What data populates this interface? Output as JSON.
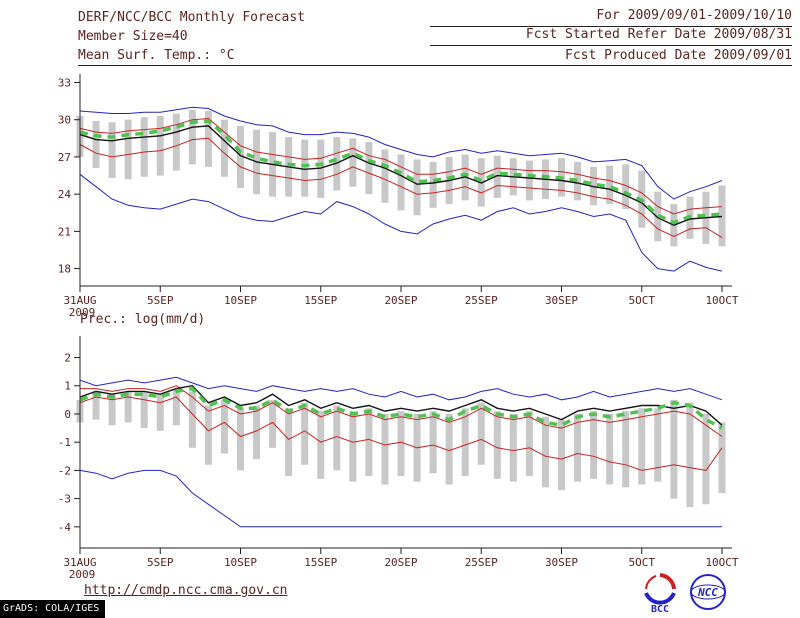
{
  "header": {
    "title": "DERF/NCC/BCC Monthly Forecast",
    "member_size": "Member Size=40",
    "temp_label": "Mean Surf. Temp.: °C",
    "for_range": "For 2009/09/01-2009/10/10",
    "fcst_started": "Fcst Started Refer Date 2009/08/31",
    "fcst_produced": "Fcst Produced Date 2009/09/01"
  },
  "footer": {
    "url": "http://cmdp.ncc.cma.gov.cn",
    "grads_credit": "GrADS: COLA/IGES",
    "logo_bcc": "BCC",
    "logo_ncc": "NCC"
  },
  "colors": {
    "blue": "#2323c8",
    "red": "#c82323",
    "black": "#141414",
    "green": "#4fc24f",
    "gray": "#c8c8c8",
    "text": "#5a2420",
    "axis": "#222222"
  },
  "chart_data": [
    {
      "type": "line",
      "title": "Mean Surf. Temp.: °C",
      "ylabel": "°C",
      "ylim": [
        16.6,
        33.2
      ],
      "yticks": [
        18,
        21,
        24,
        27,
        30,
        33
      ],
      "x_max": 40,
      "x_ticks": [
        {
          "day": 0,
          "label": "31AUG",
          "sub": "2009"
        },
        {
          "day": 5,
          "label": "5SEP"
        },
        {
          "day": 10,
          "label": "10SEP"
        },
        {
          "day": 15,
          "label": "15SEP"
        },
        {
          "day": 20,
          "label": "20SEP"
        },
        {
          "day": 25,
          "label": "25SEP"
        },
        {
          "day": 30,
          "label": "30SEP"
        },
        {
          "day": 35,
          "label": "5OCT"
        },
        {
          "day": 40,
          "label": "10OCT"
        }
      ],
      "bars": {
        "name": "ensemble-spread",
        "color": "gray",
        "high": [
          30.3,
          29.9,
          29.8,
          30.0,
          30.2,
          30.3,
          30.5,
          30.8,
          30.7,
          30.0,
          29.5,
          29.2,
          29.0,
          28.6,
          28.4,
          28.4,
          28.6,
          28.5,
          28.2,
          27.6,
          27.2,
          26.8,
          26.6,
          27.0,
          27.2,
          26.9,
          27.1,
          26.9,
          26.7,
          26.8,
          26.9,
          26.6,
          26.2,
          26.3,
          26.4,
          25.9,
          24.2,
          23.2,
          23.8,
          24.2,
          24.7
        ],
        "low": [
          27.0,
          26.1,
          25.3,
          25.2,
          25.4,
          25.5,
          25.9,
          26.4,
          26.2,
          25.4,
          24.5,
          24.0,
          23.8,
          23.8,
          23.8,
          23.7,
          24.3,
          24.6,
          24.0,
          23.3,
          22.7,
          22.3,
          22.9,
          23.2,
          23.5,
          23.0,
          23.7,
          23.9,
          23.5,
          23.6,
          23.8,
          23.5,
          23.1,
          23.2,
          22.8,
          21.3,
          20.2,
          19.8,
          20.4,
          20.0,
          19.8
        ]
      },
      "series": [
        {
          "name": "maximum",
          "color": "blue",
          "width": 1,
          "values": [
            30.7,
            30.6,
            30.5,
            30.5,
            30.6,
            30.6,
            30.8,
            31.0,
            30.9,
            30.3,
            29.9,
            29.6,
            29.5,
            29.0,
            28.8,
            28.8,
            29.0,
            28.9,
            28.6,
            28.0,
            27.6,
            27.2,
            27.0,
            27.4,
            27.6,
            27.3,
            27.5,
            27.3,
            27.1,
            27.2,
            27.3,
            27.0,
            26.6,
            26.7,
            26.8,
            26.3,
            24.6,
            23.6,
            24.2,
            24.6,
            25.1
          ]
        },
        {
          "name": "upper-quartile",
          "color": "red",
          "width": 1,
          "values": [
            29.3,
            29.0,
            28.9,
            29.1,
            29.2,
            29.3,
            29.6,
            30.0,
            30.1,
            29.0,
            27.9,
            27.4,
            27.2,
            27.0,
            26.8,
            26.9,
            27.3,
            27.7,
            27.1,
            26.8,
            26.2,
            25.6,
            25.6,
            25.8,
            26.1,
            25.6,
            26.1,
            26.0,
            25.9,
            25.9,
            25.8,
            25.6,
            25.3,
            25.1,
            24.7,
            24.1,
            23.0,
            22.4,
            22.8,
            22.9,
            23.0
          ]
        },
        {
          "name": "lower-quartile",
          "color": "red",
          "width": 1,
          "values": [
            28.0,
            27.3,
            27.0,
            27.2,
            27.4,
            27.5,
            27.9,
            28.4,
            28.5,
            27.3,
            26.2,
            25.7,
            25.5,
            25.3,
            25.1,
            25.2,
            25.6,
            26.2,
            25.7,
            25.2,
            24.6,
            24.0,
            24.1,
            24.3,
            24.6,
            24.1,
            24.7,
            24.6,
            24.5,
            24.4,
            24.3,
            24.1,
            23.8,
            23.6,
            23.1,
            22.4,
            21.2,
            20.6,
            21.2,
            21.3,
            20.5
          ]
        },
        {
          "name": "minimum",
          "color": "blue",
          "width": 1,
          "values": [
            25.6,
            24.6,
            23.6,
            23.1,
            22.9,
            22.8,
            23.2,
            23.6,
            23.4,
            22.8,
            22.2,
            21.9,
            21.8,
            22.2,
            22.6,
            22.4,
            23.4,
            23.0,
            22.4,
            21.6,
            21.0,
            20.8,
            21.6,
            22.0,
            22.3,
            21.9,
            22.6,
            22.9,
            22.4,
            22.6,
            22.9,
            22.6,
            22.2,
            22.4,
            21.9,
            19.3,
            18.0,
            17.8,
            18.6,
            18.1,
            17.8
          ]
        },
        {
          "name": "ensemble-mean",
          "color": "black",
          "width": 1.4,
          "values": [
            28.8,
            28.4,
            28.3,
            28.5,
            28.6,
            28.7,
            29.0,
            29.4,
            29.5,
            28.3,
            27.1,
            26.6,
            26.4,
            26.2,
            26.0,
            26.1,
            26.5,
            27.1,
            26.5,
            26.1,
            25.5,
            24.8,
            24.9,
            25.1,
            25.4,
            24.9,
            25.5,
            25.4,
            25.3,
            25.2,
            25.1,
            24.9,
            24.6,
            24.4,
            23.9,
            23.3,
            22.1,
            21.5,
            22.0,
            22.1,
            22.2
          ]
        },
        {
          "name": "median",
          "color": "green",
          "width": 3.5,
          "dash": "8 6",
          "values": [
            29.0,
            28.7,
            28.6,
            28.8,
            28.9,
            29.1,
            29.4,
            29.8,
            29.9,
            28.8,
            27.4,
            26.9,
            26.6,
            26.4,
            26.3,
            26.4,
            26.8,
            27.3,
            26.7,
            26.3,
            25.7,
            25.0,
            25.1,
            25.3,
            25.6,
            25.1,
            25.7,
            25.6,
            25.5,
            25.4,
            25.3,
            25.1,
            24.8,
            24.6,
            24.1,
            23.5,
            22.3,
            21.7,
            22.2,
            22.3,
            22.4
          ]
        }
      ]
    },
    {
      "type": "line",
      "title": "Prec.: log(mm/d)",
      "ylabel": "log(mm/d)",
      "ylim": [
        -4.75,
        2.55
      ],
      "yticks": [
        -4,
        -3,
        -2,
        -1,
        0,
        1,
        2
      ],
      "x_max": 40,
      "x_ticks": [
        {
          "day": 0,
          "label": "31AUG",
          "sub": "2009"
        },
        {
          "day": 5,
          "label": "5SEP"
        },
        {
          "day": 10,
          "label": "10SEP"
        },
        {
          "day": 15,
          "label": "15SEP"
        },
        {
          "day": 20,
          "label": "20SEP"
        },
        {
          "day": 25,
          "label": "25SEP"
        },
        {
          "day": 30,
          "label": "30SEP"
        },
        {
          "day": 35,
          "label": "5OCT"
        },
        {
          "day": 40,
          "label": "10OCT"
        }
      ],
      "bars": {
        "name": "ensemble-spread",
        "color": "gray",
        "high": [
          0.5,
          0.8,
          0.7,
          0.8,
          0.8,
          0.7,
          0.9,
          0.8,
          0.3,
          0.5,
          0.2,
          0.3,
          0.5,
          0.2,
          0.4,
          0.1,
          0.3,
          0.1,
          0.2,
          0.0,
          0.1,
          0.0,
          0.1,
          0.0,
          0.2,
          0.4,
          0.1,
          0.0,
          0.1,
          -0.1,
          -0.2,
          0.0,
          0.1,
          0.0,
          0.1,
          0.2,
          0.2,
          0.5,
          0.4,
          0.0,
          -0.3
        ],
        "low": [
          -0.3,
          -0.2,
          -0.4,
          -0.3,
          -0.5,
          -0.6,
          -0.4,
          -1.2,
          -1.8,
          -1.4,
          -2.0,
          -1.6,
          -1.2,
          -2.2,
          -1.8,
          -2.3,
          -2.0,
          -2.4,
          -2.2,
          -2.5,
          -2.2,
          -2.4,
          -2.1,
          -2.5,
          -2.2,
          -1.8,
          -2.3,
          -2.4,
          -2.2,
          -2.6,
          -2.7,
          -2.4,
          -2.3,
          -2.5,
          -2.6,
          -2.5,
          -2.4,
          -3.0,
          -3.3,
          -3.2,
          -2.8
        ]
      },
      "series": [
        {
          "name": "maximum",
          "color": "blue",
          "width": 1,
          "values": [
            1.2,
            1.0,
            1.1,
            1.2,
            1.1,
            1.2,
            1.3,
            1.1,
            0.9,
            1.0,
            0.9,
            0.8,
            1.0,
            0.9,
            0.8,
            0.9,
            0.8,
            0.9,
            0.7,
            0.6,
            0.8,
            0.6,
            0.7,
            0.5,
            0.6,
            0.8,
            0.9,
            0.7,
            0.6,
            0.7,
            0.5,
            0.6,
            0.8,
            0.6,
            0.7,
            0.8,
            0.9,
            0.8,
            0.9,
            0.7,
            0.5
          ]
        },
        {
          "name": "upper-quartile",
          "color": "red",
          "width": 1,
          "values": [
            0.9,
            0.9,
            0.8,
            0.9,
            0.9,
            0.8,
            1.0,
            0.6,
            0.1,
            0.3,
            0.0,
            0.1,
            0.4,
            0.0,
            0.2,
            -0.1,
            0.1,
            -0.1,
            0.0,
            -0.2,
            -0.1,
            -0.2,
            -0.1,
            -0.3,
            -0.1,
            0.2,
            -0.1,
            -0.2,
            -0.1,
            -0.4,
            -0.5,
            -0.3,
            -0.2,
            -0.3,
            -0.2,
            -0.1,
            0.0,
            0.1,
            0.0,
            -0.4,
            -0.8
          ]
        },
        {
          "name": "lower-quartile",
          "color": "red",
          "width": 1,
          "values": [
            0.4,
            0.6,
            0.5,
            0.6,
            0.5,
            0.4,
            0.6,
            0.0,
            -0.6,
            -0.3,
            -0.8,
            -0.6,
            -0.3,
            -0.9,
            -0.6,
            -1.0,
            -0.8,
            -1.0,
            -0.9,
            -1.1,
            -1.0,
            -1.2,
            -1.1,
            -1.3,
            -1.1,
            -0.9,
            -1.2,
            -1.3,
            -1.2,
            -1.5,
            -1.6,
            -1.4,
            -1.5,
            -1.7,
            -1.8,
            -2.0,
            -1.9,
            -1.8,
            -1.9,
            -2.0,
            -1.2
          ]
        },
        {
          "name": "minimum",
          "color": "blue",
          "width": 1,
          "values": [
            -2.0,
            -2.1,
            -2.3,
            -2.1,
            -2.0,
            -2.0,
            -2.2,
            -2.8,
            -3.2,
            -3.6,
            -4.0,
            -4.0,
            -4.0,
            -4.0,
            -4.0,
            -4.0,
            -4.0,
            -4.0,
            -4.0,
            -4.0,
            -4.0,
            -4.0,
            -4.0,
            -4.0,
            -4.0,
            -4.0,
            -4.0,
            -4.0,
            -4.0,
            -4.0,
            -4.0,
            -4.0,
            -4.0,
            -4.0,
            -4.0,
            -4.0,
            -4.0,
            -4.0,
            -4.0,
            -4.0,
            -4.0
          ]
        },
        {
          "name": "ensemble-mean",
          "color": "black",
          "width": 1.4,
          "values": [
            0.6,
            0.8,
            0.7,
            0.8,
            0.8,
            0.7,
            0.9,
            1.0,
            0.4,
            0.6,
            0.3,
            0.4,
            0.7,
            0.3,
            0.5,
            0.2,
            0.4,
            0.2,
            0.3,
            0.1,
            0.2,
            0.1,
            0.2,
            0.1,
            0.3,
            0.5,
            0.2,
            0.1,
            0.2,
            0.0,
            -0.2,
            0.1,
            0.2,
            0.1,
            0.2,
            0.3,
            0.3,
            0.2,
            0.3,
            0.1,
            -0.4
          ]
        },
        {
          "name": "median",
          "color": "green",
          "width": 3.5,
          "dash": "8 6",
          "values": [
            0.5,
            0.7,
            0.6,
            0.7,
            0.7,
            0.6,
            0.8,
            0.9,
            0.3,
            0.5,
            0.2,
            0.2,
            0.5,
            0.1,
            0.3,
            0.0,
            0.2,
            0.0,
            0.1,
            -0.1,
            0.0,
            -0.1,
            0.0,
            -0.2,
            0.1,
            0.3,
            0.0,
            -0.1,
            0.0,
            -0.3,
            -0.4,
            -0.1,
            0.0,
            -0.1,
            0.0,
            0.1,
            0.2,
            0.4,
            0.3,
            -0.2,
            -0.5
          ]
        }
      ]
    }
  ]
}
